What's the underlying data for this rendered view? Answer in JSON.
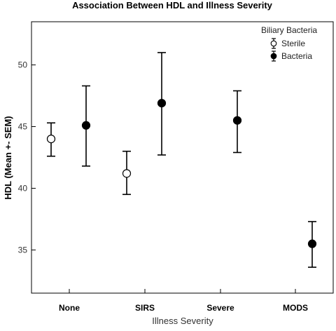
{
  "chart_data": {
    "type": "scatter",
    "title": "Association Between HDL and Illness Severity",
    "xlabel": "Illness Severity",
    "ylabel": "HDL (Mean +- SEM)",
    "categories": [
      "None",
      "SIRS",
      "Severe",
      "MODS"
    ],
    "ylim": [
      31.5,
      53.5
    ],
    "yticks": [
      35,
      40,
      45,
      50
    ],
    "grid": false,
    "legend": {
      "title": "Biliary Bacteria",
      "position": "top-right",
      "entries": [
        "Sterile",
        "Bacteria"
      ]
    },
    "series": [
      {
        "name": "Sterile",
        "marker": "open-circle",
        "points": [
          {
            "category": "None",
            "mean": 44.0,
            "low": 42.6,
            "high": 45.3
          },
          {
            "category": "SIRS",
            "mean": 41.2,
            "low": 39.5,
            "high": 43.0
          }
        ]
      },
      {
        "name": "Bacteria",
        "marker": "filled-circle",
        "points": [
          {
            "category": "None",
            "mean": 45.1,
            "low": 41.8,
            "high": 48.3
          },
          {
            "category": "SIRS",
            "mean": 46.9,
            "low": 42.7,
            "high": 51.0
          },
          {
            "category": "Severe",
            "mean": 45.5,
            "low": 42.9,
            "high": 47.9
          },
          {
            "category": "MODS",
            "mean": 35.5,
            "low": 33.6,
            "high": 37.3
          }
        ]
      }
    ]
  }
}
